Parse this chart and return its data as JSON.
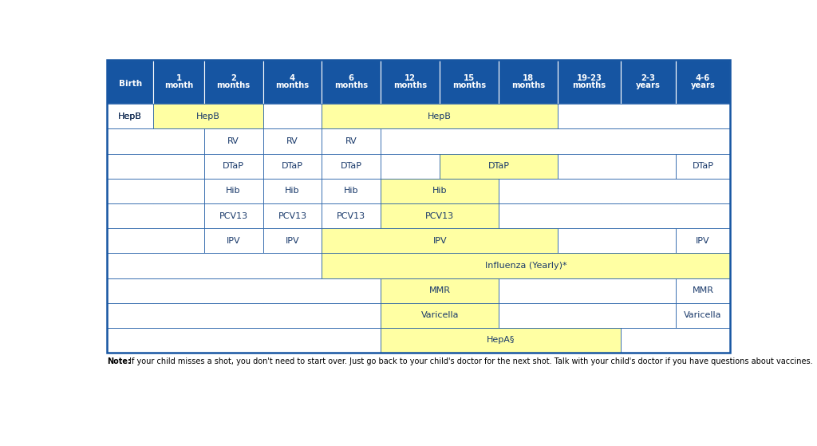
{
  "header_bg": "#1655a2",
  "header_text_color": "#ffffff",
  "yellow_bg": "#ffffa3",
  "white_bg": "#ffffff",
  "border_color": "#1655a2",
  "note_bold": "Note:",
  "note_rest": " If your child misses a shot, you don't need to start over. Just go back to your child's doctor for the next shot. Talk with your child's doctor if you have questions about vaccines.",
  "note_rest2": "vaccines.",
  "columns": [
    "Birth",
    "1|month",
    "2|months",
    "4|months",
    "6|months",
    "12|months",
    "15|months",
    "18|months",
    "19-23|months",
    "2-3|years",
    "4-6|years"
  ],
  "col_widths_raw": [
    5.5,
    6.0,
    7.0,
    7.0,
    7.0,
    7.0,
    7.0,
    7.0,
    7.5,
    6.5,
    6.5
  ],
  "rows": [
    {
      "vaccine": "HepB",
      "cells": [
        {
          "cols": [
            0
          ],
          "text": "HepB",
          "bg": "white"
        },
        {
          "cols": [
            1,
            2
          ],
          "text": "HepB",
          "bg": "yellow"
        },
        {
          "cols": [
            3
          ],
          "text": "",
          "bg": "white"
        },
        {
          "cols": [
            4,
            5,
            6,
            7
          ],
          "text": "HepB",
          "bg": "yellow"
        },
        {
          "cols": [
            8,
            9,
            10
          ],
          "text": "",
          "bg": "white"
        }
      ]
    },
    {
      "vaccine": "",
      "cells": [
        {
          "cols": [
            0,
            1
          ],
          "text": "",
          "bg": "white"
        },
        {
          "cols": [
            2
          ],
          "text": "RV",
          "bg": "white"
        },
        {
          "cols": [
            3
          ],
          "text": "RV",
          "bg": "white"
        },
        {
          "cols": [
            4
          ],
          "text": "RV",
          "bg": "white"
        },
        {
          "cols": [
            5,
            6,
            7,
            8,
            9,
            10
          ],
          "text": "",
          "bg": "white"
        }
      ]
    },
    {
      "vaccine": "",
      "cells": [
        {
          "cols": [
            0,
            1
          ],
          "text": "",
          "bg": "white"
        },
        {
          "cols": [
            2
          ],
          "text": "DTaP",
          "bg": "white"
        },
        {
          "cols": [
            3
          ],
          "text": "DTaP",
          "bg": "white"
        },
        {
          "cols": [
            4
          ],
          "text": "DTaP",
          "bg": "white"
        },
        {
          "cols": [
            5
          ],
          "text": "",
          "bg": "white"
        },
        {
          "cols": [
            6,
            7
          ],
          "text": "DTaP",
          "bg": "yellow"
        },
        {
          "cols": [
            8,
            9
          ],
          "text": "",
          "bg": "white"
        },
        {
          "cols": [
            10
          ],
          "text": "DTaP",
          "bg": "white"
        }
      ]
    },
    {
      "vaccine": "",
      "cells": [
        {
          "cols": [
            0,
            1
          ],
          "text": "",
          "bg": "white"
        },
        {
          "cols": [
            2
          ],
          "text": "Hib",
          "bg": "white"
        },
        {
          "cols": [
            3
          ],
          "text": "Hib",
          "bg": "white"
        },
        {
          "cols": [
            4
          ],
          "text": "Hib",
          "bg": "white"
        },
        {
          "cols": [
            5,
            6
          ],
          "text": "Hib",
          "bg": "yellow"
        },
        {
          "cols": [
            7,
            8,
            9,
            10
          ],
          "text": "",
          "bg": "white"
        }
      ]
    },
    {
      "vaccine": "",
      "cells": [
        {
          "cols": [
            0,
            1
          ],
          "text": "",
          "bg": "white"
        },
        {
          "cols": [
            2
          ],
          "text": "PCV13",
          "bg": "white"
        },
        {
          "cols": [
            3
          ],
          "text": "PCV13",
          "bg": "white"
        },
        {
          "cols": [
            4
          ],
          "text": "PCV13",
          "bg": "white"
        },
        {
          "cols": [
            5,
            6
          ],
          "text": "PCV13",
          "bg": "yellow"
        },
        {
          "cols": [
            7,
            8,
            9,
            10
          ],
          "text": "",
          "bg": "white"
        }
      ]
    },
    {
      "vaccine": "",
      "cells": [
        {
          "cols": [
            0,
            1
          ],
          "text": "",
          "bg": "white"
        },
        {
          "cols": [
            2
          ],
          "text": "IPV",
          "bg": "white"
        },
        {
          "cols": [
            3
          ],
          "text": "IPV",
          "bg": "white"
        },
        {
          "cols": [
            4,
            5,
            6,
            7
          ],
          "text": "IPV",
          "bg": "yellow"
        },
        {
          "cols": [
            8,
            9
          ],
          "text": "",
          "bg": "white"
        },
        {
          "cols": [
            10
          ],
          "text": "IPV",
          "bg": "white"
        }
      ]
    },
    {
      "vaccine": "",
      "cells": [
        {
          "cols": [
            0,
            1,
            2,
            3
          ],
          "text": "",
          "bg": "white"
        },
        {
          "cols": [
            4,
            5,
            6,
            7,
            8,
            9,
            10
          ],
          "text": "Influenza (Yearly)*",
          "bg": "yellow"
        }
      ]
    },
    {
      "vaccine": "",
      "cells": [
        {
          "cols": [
            0,
            1,
            2,
            3,
            4
          ],
          "text": "",
          "bg": "white"
        },
        {
          "cols": [
            5,
            6
          ],
          "text": "MMR",
          "bg": "yellow"
        },
        {
          "cols": [
            7,
            8,
            9
          ],
          "text": "",
          "bg": "white"
        },
        {
          "cols": [
            10
          ],
          "text": "MMR",
          "bg": "white"
        }
      ]
    },
    {
      "vaccine": "",
      "cells": [
        {
          "cols": [
            0,
            1,
            2,
            3,
            4
          ],
          "text": "",
          "bg": "white"
        },
        {
          "cols": [
            5,
            6
          ],
          "text": "Varicella",
          "bg": "yellow"
        },
        {
          "cols": [
            7,
            8,
            9
          ],
          "text": "",
          "bg": "white"
        },
        {
          "cols": [
            10
          ],
          "text": "Varicella",
          "bg": "white"
        }
      ]
    },
    {
      "vaccine": "",
      "cells": [
        {
          "cols": [
            0,
            1,
            2,
            3,
            4
          ],
          "text": "",
          "bg": "white"
        },
        {
          "cols": [
            5,
            6,
            7,
            8
          ],
          "text": "HepA§",
          "bg": "yellow"
        },
        {
          "cols": [
            9,
            10
          ],
          "text": "",
          "bg": "white"
        }
      ]
    }
  ]
}
